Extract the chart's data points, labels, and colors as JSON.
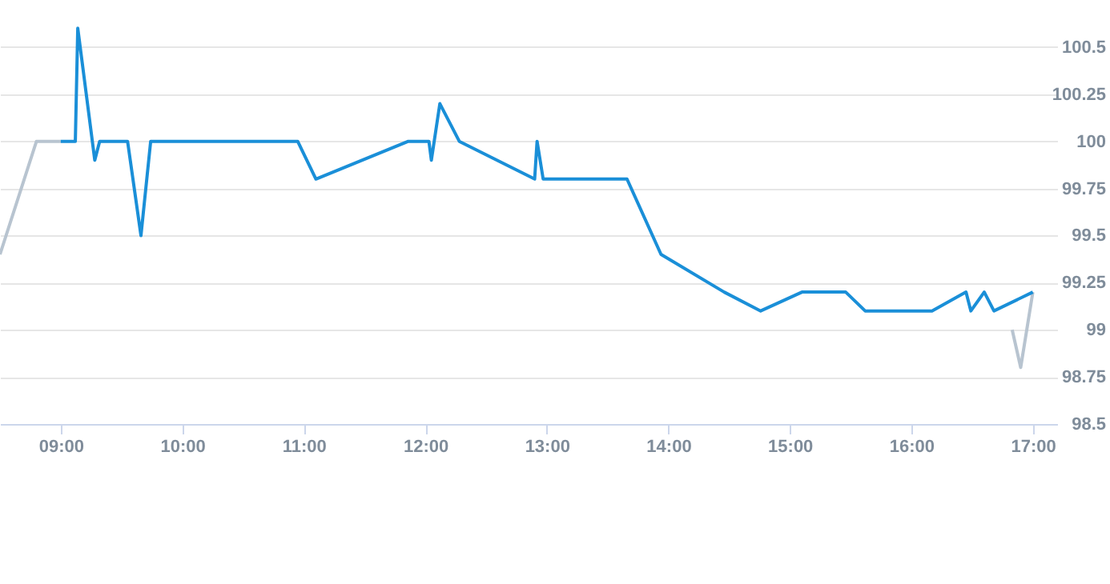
{
  "chart_data": {
    "type": "line",
    "grid": "y",
    "marker": "none",
    "line_style": "solid",
    "xlim": [
      8.5,
      17.2
    ],
    "xticks": [
      {
        "value": 9,
        "label": "09:00"
      },
      {
        "value": 10,
        "label": "10:00"
      },
      {
        "value": 11,
        "label": "11:00"
      },
      {
        "value": 12,
        "label": "12:00"
      },
      {
        "value": 13,
        "label": "13:00"
      },
      {
        "value": 14,
        "label": "14:00"
      },
      {
        "value": 15,
        "label": "15:00"
      },
      {
        "value": 16,
        "label": "16:00"
      },
      {
        "value": 17,
        "label": "17:00"
      }
    ],
    "ylim": [
      98.5,
      100.75
    ],
    "yticks": [
      98.5,
      98.75,
      99,
      99.25,
      99.5,
      99.75,
      100,
      100.25,
      100.5
    ],
    "series": [
      {
        "color": "#b8c4d0",
        "x": [
          8.5,
          8.8,
          9.0
        ],
        "values": [
          99.4,
          100,
          100
        ]
      },
      {
        "color": "#b8c4d0",
        "x": [
          16.83,
          16.9,
          17.0
        ],
        "values": [
          99,
          98.8,
          99.2
        ]
      },
      {
        "color": "#1a8fd8",
        "x": [
          9.0,
          9.12,
          9.14,
          9.28,
          9.32,
          9.55,
          9.66,
          9.74,
          10.95,
          11.1,
          11.86,
          12.03,
          12.05,
          12.12,
          12.28,
          12.9,
          12.92,
          12.97,
          13.66,
          13.94,
          14.46,
          14.76,
          15.1,
          15.46,
          15.62,
          16.17,
          16.45,
          16.49,
          16.6,
          16.68,
          17.0
        ],
        "values": [
          100,
          100,
          100.6,
          99.9,
          100,
          100,
          99.5,
          100,
          100,
          99.8,
          100,
          100,
          99.9,
          100.2,
          100,
          99.8,
          100,
          99.8,
          99.8,
          99.4,
          99.2,
          99.1,
          99.2,
          99.2,
          99.1,
          99.1,
          99.2,
          99.1,
          99.2,
          99.1,
          99.2
        ]
      }
    ]
  }
}
